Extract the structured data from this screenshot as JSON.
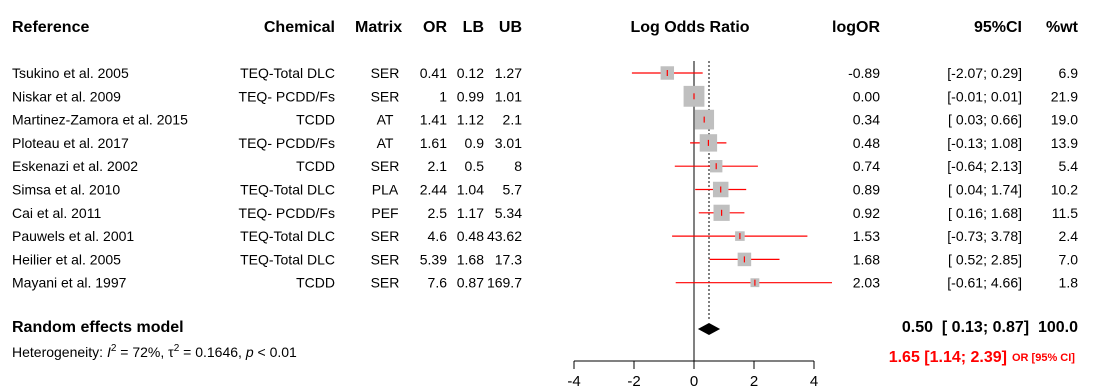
{
  "chart_data": {
    "type": "forest",
    "columns": {
      "reference": "Reference",
      "chemical": "Chemical",
      "matrix": "Matrix",
      "or": "OR",
      "lb": "LB",
      "ub": "UB",
      "plot": "Log Odds Ratio",
      "logor": "logOR",
      "ci": "95%CI",
      "wt": "%wt"
    },
    "studies": [
      {
        "reference": "Tsukino et al. 2005",
        "chemical": "TEQ-Total DLC",
        "matrix": "SER",
        "or": "0.41",
        "lb": "0.12",
        "ub": "1.27",
        "logor": -0.89,
        "lower": -2.07,
        "upper": 0.29,
        "logor_text": "-0.89",
        "ci_text": "[-2.07; 0.29]",
        "wt": 6.9,
        "wt_text": "6.9"
      },
      {
        "reference": "Niskar et al. 2009",
        "chemical": "TEQ- PCDD/Fs",
        "matrix": "SER",
        "or": "1",
        "lb": "0.99",
        "ub": "1.01",
        "logor": 0.0,
        "lower": -0.01,
        "upper": 0.01,
        "logor_text": "0.00",
        "ci_text": "[-0.01; 0.01]",
        "wt": 21.9,
        "wt_text": "21.9"
      },
      {
        "reference": "Martinez-Zamora et al. 2015",
        "chemical": "TCDD",
        "matrix": "AT",
        "or": "1.41",
        "lb": "1.12",
        "ub": "2.1",
        "logor": 0.34,
        "lower": 0.03,
        "upper": 0.66,
        "logor_text": "0.34",
        "ci_text": "[ 0.03; 0.66]",
        "wt": 19.0,
        "wt_text": "19.0"
      },
      {
        "reference": "Ploteau et al. 2017",
        "chemical": "TEQ- PCDD/Fs",
        "matrix": "AT",
        "or": "1.61",
        "lb": "0.9",
        "ub": "3.01",
        "logor": 0.48,
        "lower": -0.13,
        "upper": 1.08,
        "logor_text": "0.48",
        "ci_text": "[-0.13; 1.08]",
        "wt": 13.9,
        "wt_text": "13.9"
      },
      {
        "reference": "Eskenazi et al. 2002",
        "chemical": "TCDD",
        "matrix": "SER",
        "or": "2.1",
        "lb": "0.5",
        "ub": "8",
        "logor": 0.74,
        "lower": -0.64,
        "upper": 2.13,
        "logor_text": "0.74",
        "ci_text": "[-0.64; 2.13]",
        "wt": 5.4,
        "wt_text": "5.4"
      },
      {
        "reference": "Simsa et al. 2010",
        "chemical": "TEQ-Total DLC",
        "matrix": "PLA",
        "or": "2.44",
        "lb": "1.04",
        "ub": "5.7",
        "logor": 0.89,
        "lower": 0.04,
        "upper": 1.74,
        "logor_text": "0.89",
        "ci_text": "[ 0.04; 1.74]",
        "wt": 10.2,
        "wt_text": "10.2"
      },
      {
        "reference": "Cai et al. 2011",
        "chemical": "TEQ- PCDD/Fs",
        "matrix": "PEF",
        "or": "2.5",
        "lb": "1.17",
        "ub": "5.34",
        "logor": 0.92,
        "lower": 0.16,
        "upper": 1.68,
        "logor_text": "0.92",
        "ci_text": "[ 0.16; 1.68]",
        "wt": 11.5,
        "wt_text": "11.5"
      },
      {
        "reference": "Pauwels et al. 2001",
        "chemical": "TEQ-Total DLC",
        "matrix": "SER",
        "or": "4.6",
        "lb": "0.48",
        "ub": "43.62",
        "logor": 1.53,
        "lower": -0.73,
        "upper": 3.78,
        "logor_text": "1.53",
        "ci_text": "[-0.73; 3.78]",
        "wt": 2.4,
        "wt_text": "2.4"
      },
      {
        "reference": "Heilier et al. 2005",
        "chemical": "TEQ-Total DLC",
        "matrix": "SER",
        "or": "5.39",
        "lb": "1.68",
        "ub": "17.3",
        "logor": 1.68,
        "lower": 0.52,
        "upper": 2.85,
        "logor_text": "1.68",
        "ci_text": "[ 0.52; 2.85]",
        "wt": 7.0,
        "wt_text": "7.0"
      },
      {
        "reference": "Mayani et al. 1997",
        "chemical": "TCDD",
        "matrix": "SER",
        "or": "7.6",
        "lb": "0.87",
        "ub": "169.7",
        "logor": 2.03,
        "lower": -0.61,
        "upper": 4.66,
        "logor_text": "2.03",
        "ci_text": "[-0.61; 4.66]",
        "wt": 1.8,
        "wt_text": "1.8"
      }
    ],
    "pooled": {
      "label": "Random effects model",
      "logor": 0.5,
      "lower": 0.13,
      "upper": 0.87,
      "summary_text": "0.50  [ 0.13; 0.87]  100.0",
      "or_text": "1.65  [1.14; 2.39]",
      "or_suffix": "OR [95% CI]"
    },
    "heterogeneity": {
      "prefix": "Heterogeneity: ",
      "i2_symbol": "I",
      "i2_value": " = 72%, ",
      "tau_symbol": "τ",
      "tau_value": " = 0.1646, ",
      "p_symbol": "p",
      "p_value": " < 0.01"
    },
    "x_axis": {
      "ticks": [
        -4,
        -2,
        0,
        2,
        4
      ],
      "xlim": [
        -4,
        4
      ]
    },
    "colors": {
      "ci_line": "#ff0000",
      "square": "#bfbfbf",
      "diamond": "#000000",
      "null_line": "#000000",
      "ref_line": "#000000"
    }
  }
}
